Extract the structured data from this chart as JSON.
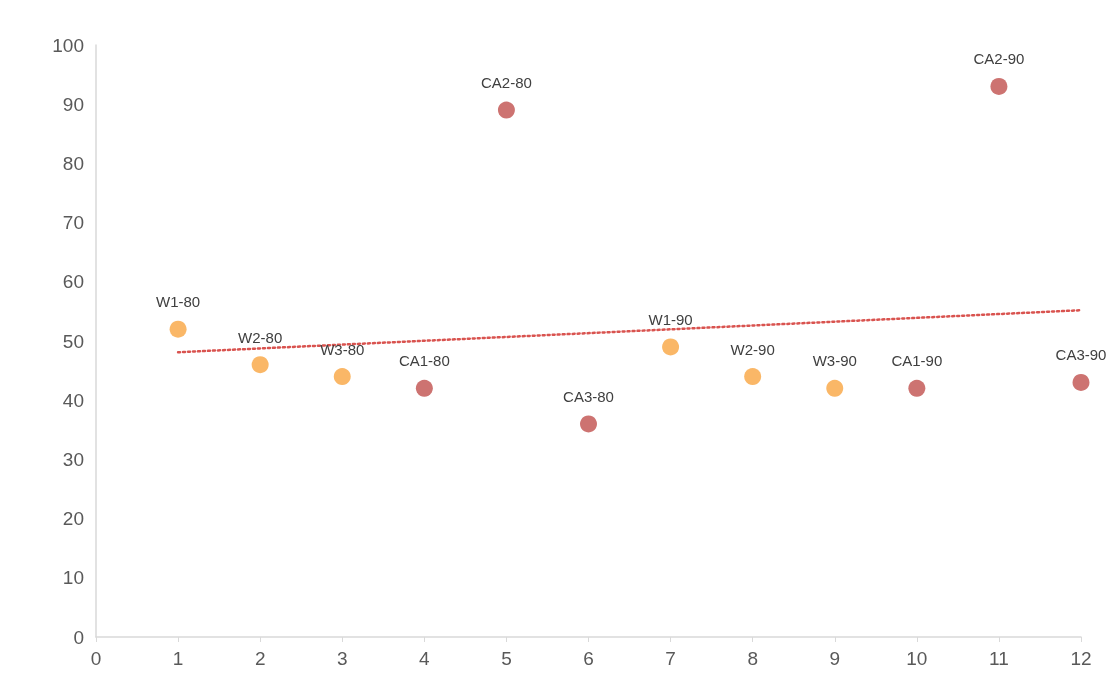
{
  "chart_data": {
    "type": "scatter",
    "x": [
      1,
      2,
      3,
      4,
      5,
      6,
      7,
      8,
      9,
      10,
      11,
      12
    ],
    "series": [
      {
        "values": [
          52,
          46,
          44,
          42,
          89,
          36,
          49,
          44,
          42,
          42,
          93,
          43
        ],
        "colors": [
          "#f9a541",
          "#f9a541",
          "#f9a541",
          "#c0504d",
          "#c0504d",
          "#c0504d",
          "#f9a541",
          "#f9a541",
          "#f9a541",
          "#c0504d",
          "#c0504d",
          "#c0504d"
        ],
        "marker": "circle"
      },
      {
        "type": "line",
        "x": [
          1,
          12
        ],
        "values": [
          48.1,
          55.2
        ],
        "color": "#d9534f",
        "line_style": "dotted",
        "marker": "none"
      }
    ],
    "annotations": [
      {
        "text": "W1-80",
        "x": 1,
        "y": 52
      },
      {
        "text": "W2-80",
        "x": 2,
        "y": 46
      },
      {
        "text": "W3-80",
        "x": 3,
        "y": 44
      },
      {
        "text": "CA1-80",
        "x": 4,
        "y": 42
      },
      {
        "text": "CA2-80",
        "x": 5,
        "y": 89
      },
      {
        "text": "CA3-80",
        "x": 6,
        "y": 36
      },
      {
        "text": "W1-90",
        "x": 7,
        "y": 49
      },
      {
        "text": "W2-90",
        "x": 8,
        "y": 44
      },
      {
        "text": "W3-90",
        "x": 9,
        "y": 42
      },
      {
        "text": "CA1-90",
        "x": 10,
        "y": 42
      },
      {
        "text": "CA2-90",
        "x": 11,
        "y": 93
      },
      {
        "text": "CA3-90",
        "x": 12,
        "y": 43
      }
    ],
    "xlim": [
      0,
      12
    ],
    "xticks": [
      0,
      1,
      2,
      3,
      4,
      5,
      6,
      7,
      8,
      9,
      10,
      11,
      12
    ],
    "ylim": [
      0,
      100
    ],
    "yticks": [
      0,
      10,
      20,
      30,
      40,
      50,
      60,
      70,
      80,
      90,
      100
    ],
    "grid": false
  }
}
